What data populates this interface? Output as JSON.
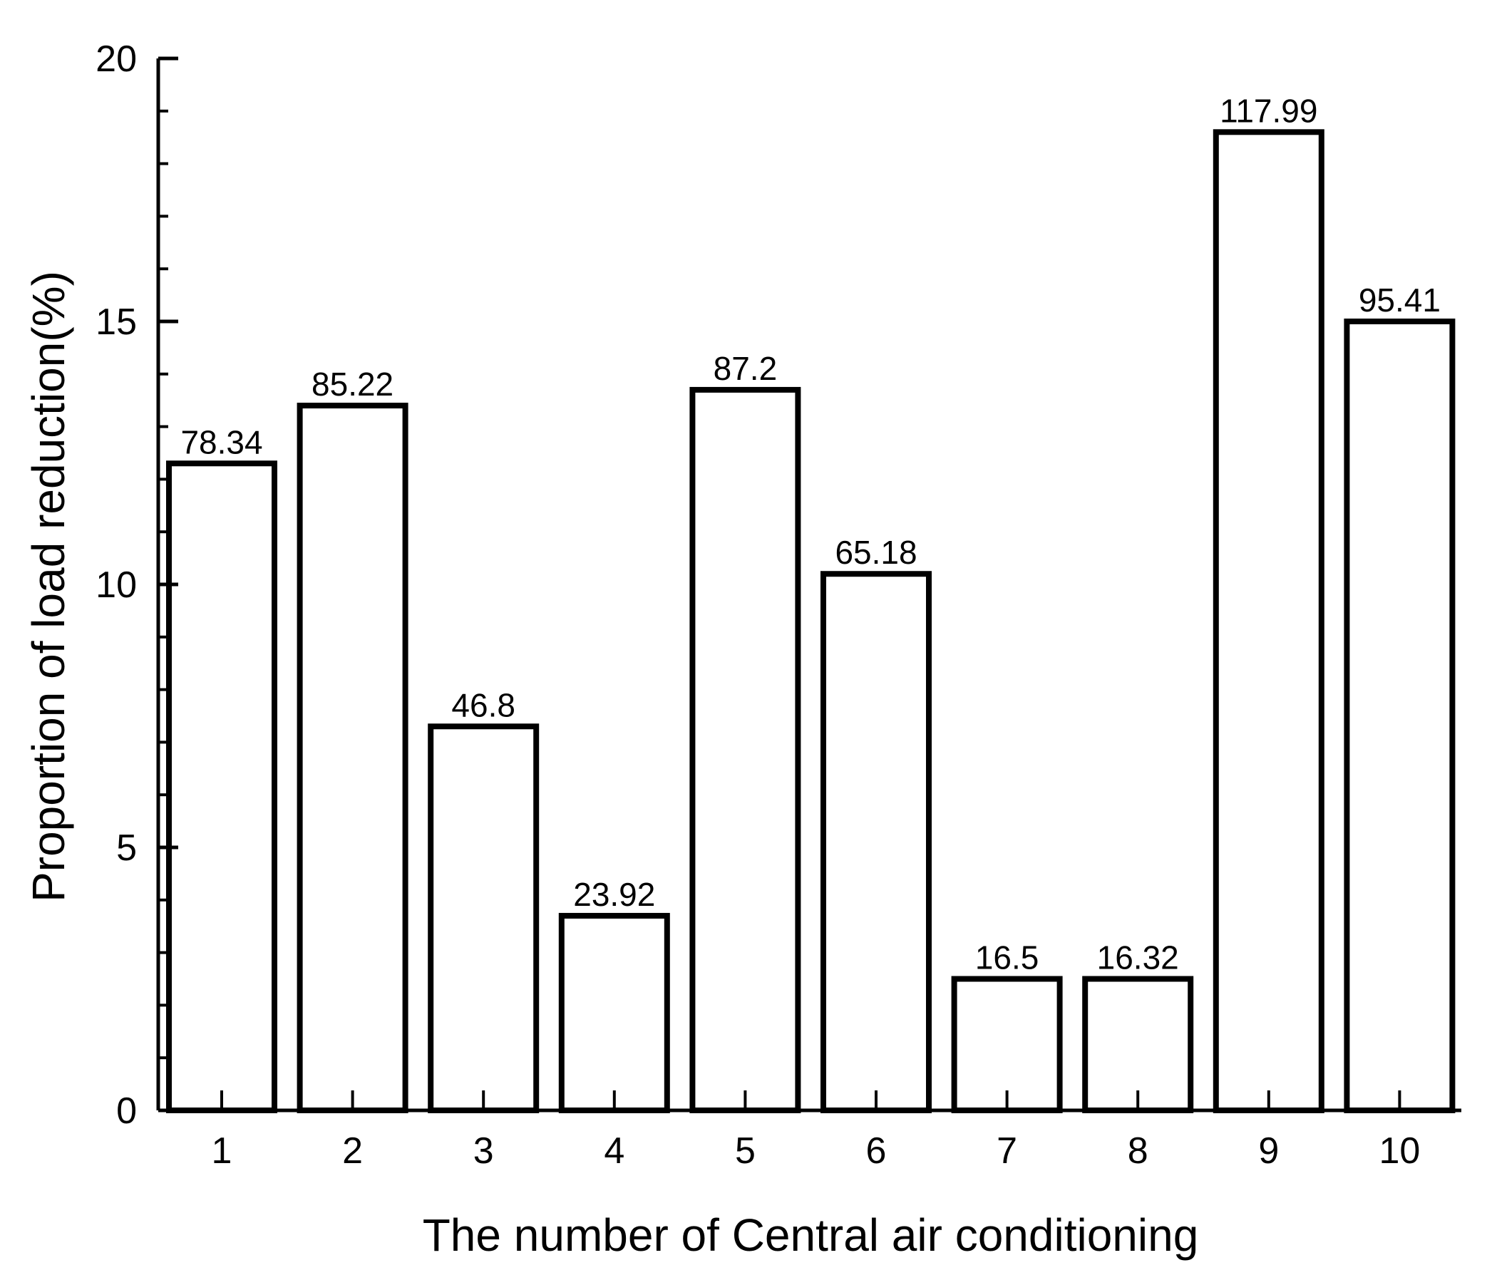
{
  "chart_data": {
    "type": "bar",
    "title": "",
    "xlabel": "The number of Central air conditioning",
    "ylabel": "Proportion of load reduction(%)",
    "ylim": [
      0,
      20
    ],
    "y_ticks": [
      "0",
      "5",
      "10",
      "15",
      "20"
    ],
    "y_minor_step": 1,
    "categories": [
      "1",
      "2",
      "3",
      "4",
      "5",
      "6",
      "7",
      "8",
      "9",
      "10"
    ],
    "values": [
      12.3,
      13.4,
      7.3,
      3.7,
      13.7,
      10.2,
      2.5,
      2.5,
      18.6,
      15.0
    ],
    "data_labels": [
      "78.34",
      "85.22",
      "46.8",
      "23.92",
      "87.2",
      "65.18",
      "16.5",
      "16.32",
      "117.99",
      "95.41"
    ],
    "grid": false,
    "legend": "none",
    "bar_fill": "#ffffff",
    "bar_stroke": "#000000"
  }
}
